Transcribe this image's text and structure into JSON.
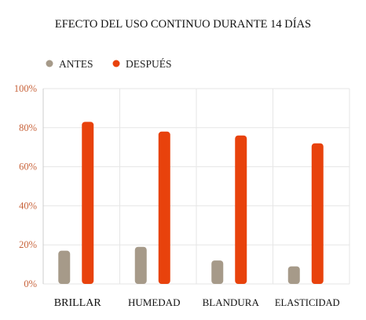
{
  "chart_data": {
    "type": "bar",
    "title": "EFECTO DEL USO CONTINUO DURANTE 14 DÍAS",
    "categories": [
      "BRILLAR",
      "HUMEDAD",
      "BLANDURA",
      "ELASTICIDAD"
    ],
    "series": [
      {
        "name": "ANTES",
        "color": "#a69a89",
        "values": [
          17,
          19,
          12,
          9
        ]
      },
      {
        "name": "DESPUÉS",
        "color": "#e8420c",
        "values": [
          83,
          78,
          76,
          72
        ]
      }
    ],
    "yticks": [
      "0%",
      "20%",
      "40%",
      "60%",
      "80%",
      "100%"
    ],
    "ylim": [
      0,
      100
    ],
    "grid": true,
    "legend": "top-left",
    "tick_color": "#c8643c"
  }
}
